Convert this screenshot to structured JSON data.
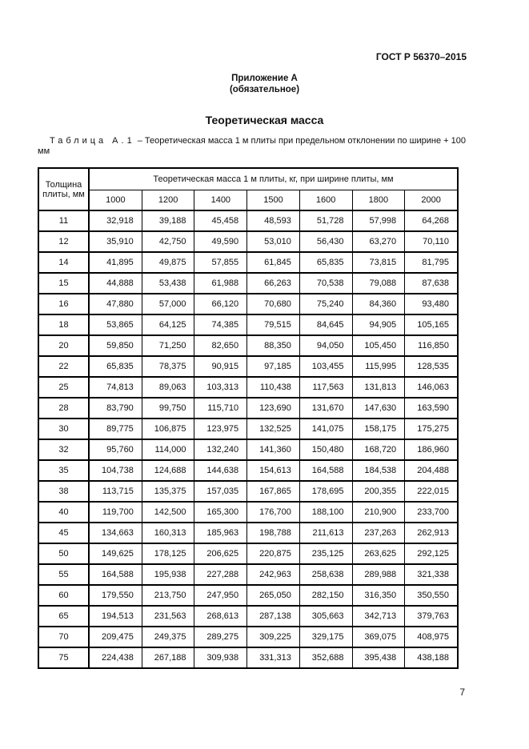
{
  "header": {
    "standard": "ГОСТ Р 56370–2015"
  },
  "appendix": {
    "title": "Приложение А",
    "note": "(обязательное)"
  },
  "section_title": "Теоретическая масса",
  "caption": {
    "label": "Таблица А.1",
    "text": " – Теоретическая масса 1 м плиты при предельном отклонении по ширине + 100 мм"
  },
  "table": {
    "thickness_header": "Толщина плиты, мм",
    "mass_header": "Теоретическая масса 1 м плиты, кг, при ширине плиты, мм",
    "widths": [
      "1000",
      "1200",
      "1400",
      "1500",
      "1600",
      "1800",
      "2000"
    ],
    "rows": [
      [
        "11",
        "32,918",
        "39,188",
        "45,458",
        "48,593",
        "51,728",
        "57,998",
        "64,268"
      ],
      [
        "12",
        "35,910",
        "42,750",
        "49,590",
        "53,010",
        "56,430",
        "63,270",
        "70,110"
      ],
      [
        "14",
        "41,895",
        "49,875",
        "57,855",
        "61,845",
        "65,835",
        "73,815",
        "81,795"
      ],
      [
        "15",
        "44,888",
        "53,438",
        "61,988",
        "66,263",
        "70,538",
        "79,088",
        "87,638"
      ],
      [
        "16",
        "47,880",
        "57,000",
        "66,120",
        "70,680",
        "75,240",
        "84,360",
        "93,480"
      ],
      [
        "18",
        "53,865",
        "64,125",
        "74,385",
        "79,515",
        "84,645",
        "94,905",
        "105,165"
      ],
      [
        "20",
        "59,850",
        "71,250",
        "82,650",
        "88,350",
        "94,050",
        "105,450",
        "116,850"
      ],
      [
        "22",
        "65,835",
        "78,375",
        "90,915",
        "97,185",
        "103,455",
        "115,995",
        "128,535"
      ],
      [
        "25",
        "74,813",
        "89,063",
        "103,313",
        "110,438",
        "117,563",
        "131,813",
        "146,063"
      ],
      [
        "28",
        "83,790",
        "99,750",
        "115,710",
        "123,690",
        "131,670",
        "147,630",
        "163,590"
      ],
      [
        "30",
        "89,775",
        "106,875",
        "123,975",
        "132,525",
        "141,075",
        "158,175",
        "175,275"
      ],
      [
        "32",
        "95,760",
        "114,000",
        "132,240",
        "141,360",
        "150,480",
        "168,720",
        "186,960"
      ],
      [
        "35",
        "104,738",
        "124,688",
        "144,638",
        "154,613",
        "164,588",
        "184,538",
        "204,488"
      ],
      [
        "38",
        "113,715",
        "135,375",
        "157,035",
        "167,865",
        "178,695",
        "200,355",
        "222,015"
      ],
      [
        "40",
        "119,700",
        "142,500",
        "165,300",
        "176,700",
        "188,100",
        "210,900",
        "233,700"
      ],
      [
        "45",
        "134,663",
        "160,313",
        "185,963",
        "198,788",
        "211,613",
        "237,263",
        "262,913"
      ],
      [
        "50",
        "149,625",
        "178,125",
        "206,625",
        "220,875",
        "235,125",
        "263,625",
        "292,125"
      ],
      [
        "55",
        "164,588",
        "195,938",
        "227,288",
        "242,963",
        "258,638",
        "289,988",
        "321,338"
      ],
      [
        "60",
        "179,550",
        "213,750",
        "247,950",
        "265,050",
        "282,150",
        "316,350",
        "350,550"
      ],
      [
        "65",
        "194,513",
        "231,563",
        "268,613",
        "287,138",
        "305,663",
        "342,713",
        "379,763"
      ],
      [
        "70",
        "209,475",
        "249,375",
        "289,275",
        "309,225",
        "329,175",
        "369,075",
        "408,975"
      ],
      [
        "75",
        "224,438",
        "267,188",
        "309,938",
        "331,313",
        "352,688",
        "395,438",
        "438,188"
      ]
    ]
  },
  "page_number": "7"
}
